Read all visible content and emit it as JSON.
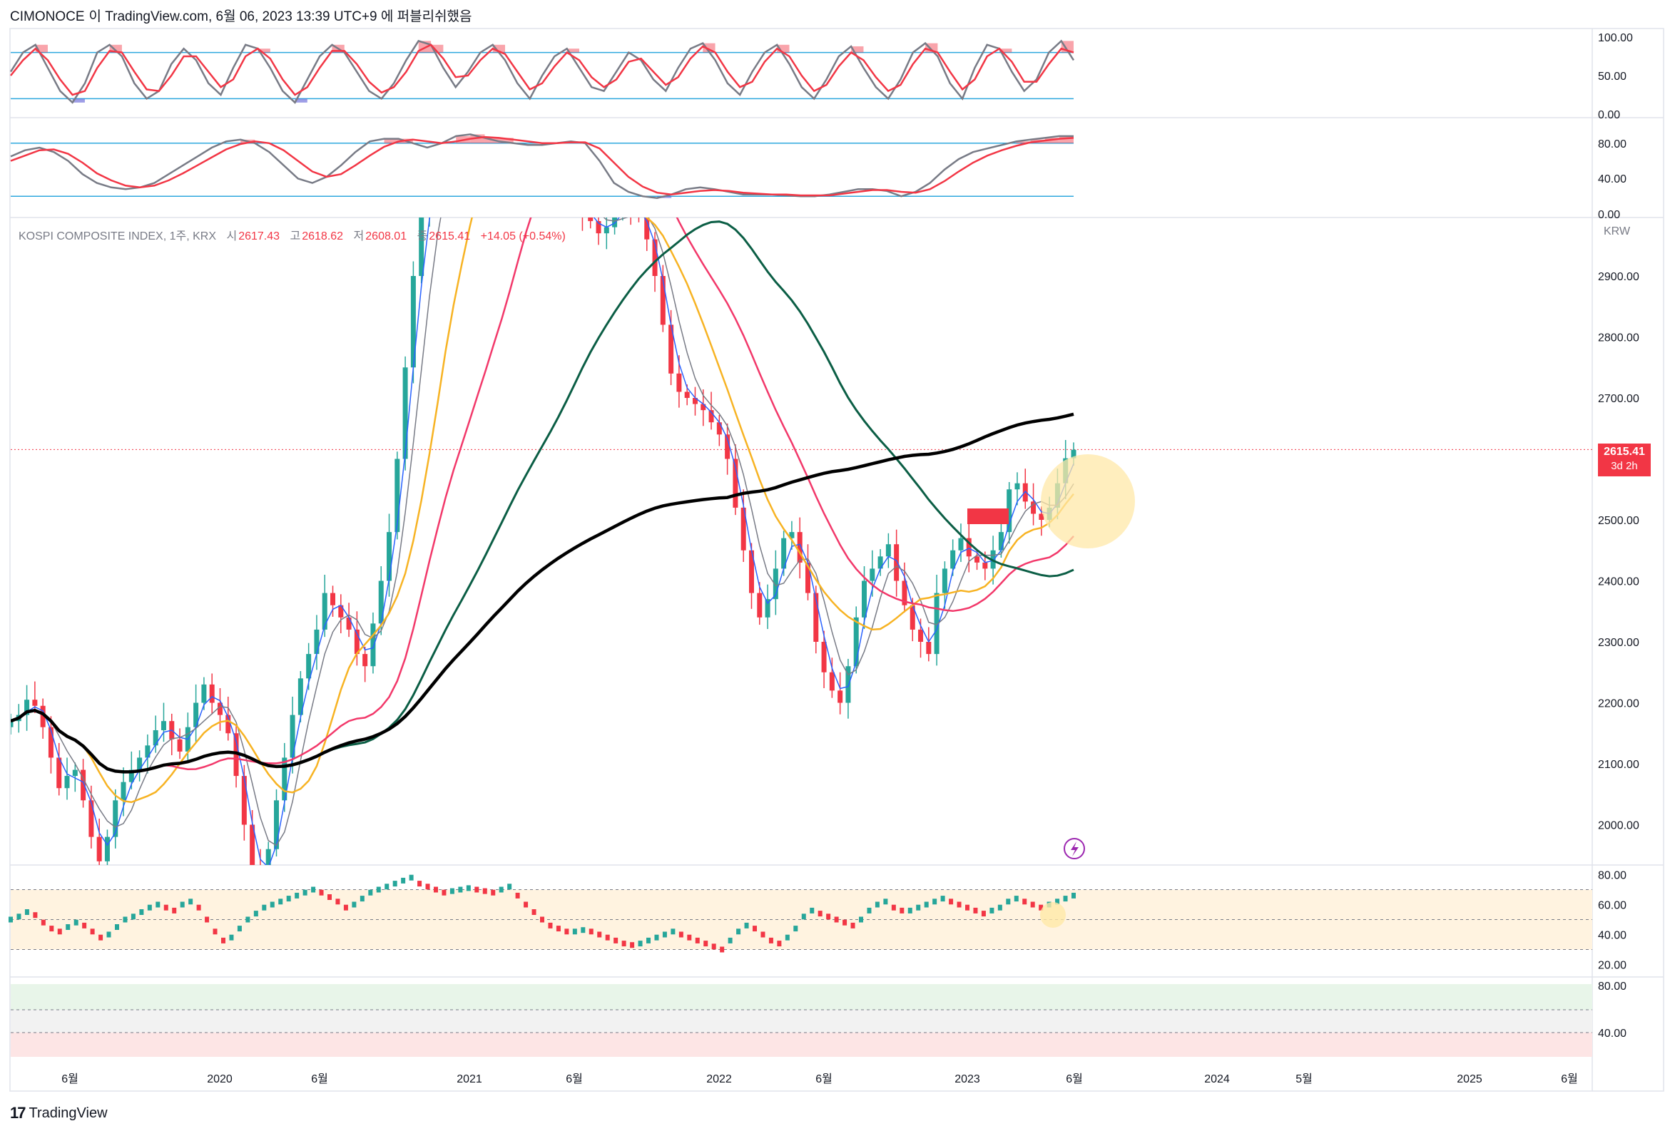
{
  "header": {
    "author": "CIMONOCE",
    "text": "이 TradingView.com, 6월 06, 2023 13:39 UTC+9 에 퍼블리쉬했음"
  },
  "ohlc": {
    "symbol": "KOSPI COMPOSITE INDEX, 1주, KRX",
    "open_label": "시",
    "open": "2617.43",
    "high_label": "고",
    "high": "2618.62",
    "low_label": "저",
    "low": "2608.01",
    "close_label": "종",
    "close": "2615.41",
    "change": "+14.05 (+0.54%)"
  },
  "price_tag": {
    "price": "2615.41",
    "countdown": "3d 2h"
  },
  "currency": "KRW",
  "footer": {
    "logo": "17",
    "brand": "TradingView"
  },
  "colors": {
    "up": "#26a69a",
    "down": "#f23645",
    "ma_fast": "#2962ff",
    "ma_gray": "#787b86",
    "ma_yellow": "#f7b323",
    "ma_pink": "#f2386a",
    "ma_green": "#0b5e45",
    "ma_black": "#000000",
    "stoch_k": "#787b86",
    "stoch_d": "#f23645",
    "band": "#2ea8de",
    "highlight": "#ffe8a8"
  },
  "chart_data": [
    {
      "type": "line",
      "panel": "stochastic-1",
      "y_ticks": [
        "100.00",
        "50.00",
        "0.00"
      ],
      "levels": [
        80,
        20
      ],
      "ylim": [
        0,
        100
      ],
      "series": [
        {
          "values": [
            55,
            80,
            90,
            60,
            30,
            15,
            40,
            80,
            90,
            75,
            40,
            20,
            30,
            65,
            85,
            70,
            40,
            25,
            60,
            90,
            85,
            60,
            30,
            15,
            45,
            75,
            90,
            80,
            55,
            30,
            20,
            40,
            70,
            95,
            90,
            60,
            35,
            55,
            80,
            90,
            70,
            40,
            20,
            50,
            75,
            85,
            60,
            35,
            30,
            55,
            80,
            70,
            45,
            30,
            60,
            85,
            92,
            70,
            40,
            25,
            55,
            80,
            90,
            65,
            35,
            20,
            45,
            75,
            88,
            60,
            35,
            20,
            45,
            80,
            92,
            75,
            40,
            20,
            60,
            90,
            85,
            55,
            30,
            45,
            80,
            95,
            70
          ]
        },
        {
          "values": [
            50,
            70,
            85,
            70,
            45,
            25,
            30,
            60,
            82,
            80,
            55,
            32,
            30,
            50,
            75,
            75,
            55,
            35,
            45,
            75,
            85,
            72,
            45,
            25,
            35,
            60,
            82,
            82,
            65,
            42,
            28,
            35,
            55,
            82,
            90,
            72,
            48,
            50,
            70,
            85,
            78,
            55,
            32,
            40,
            62,
            80,
            70,
            48,
            35,
            45,
            68,
            72,
            55,
            38,
            48,
            72,
            88,
            80,
            55,
            35,
            42,
            68,
            85,
            75,
            50,
            30,
            38,
            62,
            80,
            70,
            48,
            30,
            38,
            65,
            85,
            80,
            55,
            32,
            45,
            75,
            85,
            68,
            42,
            42,
            65,
            85,
            80
          ]
        }
      ]
    },
    {
      "type": "line",
      "panel": "stochastic-2",
      "y_ticks": [
        "80.00",
        "40.00",
        "0.00"
      ],
      "levels": [
        80,
        20
      ],
      "ylim": [
        0,
        100
      ],
      "series": [
        {
          "values": [
            65,
            72,
            75,
            70,
            60,
            45,
            35,
            30,
            28,
            30,
            35,
            45,
            55,
            65,
            75,
            82,
            84,
            80,
            70,
            55,
            40,
            35,
            42,
            55,
            70,
            82,
            85,
            85,
            80,
            75,
            80,
            88,
            90,
            86,
            82,
            80,
            78,
            78,
            80,
            82,
            80,
            60,
            35,
            25,
            20,
            18,
            22,
            28,
            30,
            28,
            25,
            22,
            22,
            22,
            21,
            20,
            20,
            22,
            25,
            28,
            28,
            26,
            20,
            25,
            35,
            50,
            62,
            70,
            74,
            78,
            82,
            84,
            86,
            88,
            88
          ]
        },
        {
          "values": [
            60,
            66,
            72,
            73,
            68,
            58,
            46,
            38,
            32,
            30,
            32,
            38,
            46,
            55,
            64,
            73,
            79,
            82,
            80,
            72,
            60,
            48,
            42,
            45,
            55,
            66,
            76,
            82,
            84,
            82,
            80,
            82,
            85,
            87,
            86,
            84,
            82,
            80,
            80,
            81,
            81,
            74,
            58,
            42,
            31,
            24,
            22,
            24,
            26,
            27,
            26,
            24,
            23,
            22,
            22,
            21,
            21,
            21,
            23,
            25,
            27,
            27,
            25,
            24,
            28,
            37,
            48,
            58,
            66,
            72,
            77,
            81,
            83,
            85,
            86
          ]
        }
      ]
    },
    {
      "type": "candlestick",
      "panel": "price",
      "title": "KOSPI COMPOSITE INDEX, 1주, KRX",
      "ylabel": "KRW",
      "y_ticks": [
        2900,
        2800,
        2700,
        2600,
        2500,
        2400,
        2300,
        2200,
        2100,
        2000
      ],
      "ylim": [
        1930,
        3050
      ],
      "x_ticks": [
        "6월",
        "2020",
        "6월",
        "2021",
        "6월",
        "2022",
        "6월",
        "2023",
        "6월",
        "2024",
        "5월",
        "2025",
        "6월"
      ],
      "last_price": 2615.41,
      "closes": [
        2170,
        2180,
        2205,
        2195,
        2160,
        2110,
        2060,
        2080,
        2090,
        2040,
        1980,
        1940,
        1980,
        2040,
        2070,
        2090,
        2110,
        2130,
        2155,
        2170,
        2140,
        2120,
        2160,
        2200,
        2230,
        2200,
        2180,
        2150,
        2080,
        2000,
        1930,
        1900,
        1960,
        2040,
        2110,
        2180,
        2240,
        2280,
        2320,
        2380,
        2360,
        2340,
        2320,
        2280,
        2260,
        2330,
        2400,
        2480,
        2600,
        2750,
        2900,
        3000,
        3080,
        3100,
        3120,
        3090,
        3060,
        3100,
        3150,
        3200,
        3210,
        3180,
        3230,
        3250,
        3200,
        3150,
        3120,
        3080,
        3060,
        3040,
        3020,
        3000,
        2990,
        2970,
        2980,
        3010,
        3020,
        3010,
        3000,
        2960,
        2900,
        2820,
        2740,
        2710,
        2700,
        2690,
        2680,
        2660,
        2640,
        2600,
        2520,
        2450,
        2380,
        2340,
        2370,
        2420,
        2470,
        2480,
        2430,
        2380,
        2300,
        2250,
        2220,
        2200,
        2260,
        2340,
        2400,
        2420,
        2440,
        2460,
        2400,
        2360,
        2320,
        2300,
        2280,
        2380,
        2420,
        2450,
        2470,
        2440,
        2430,
        2420,
        2450,
        2480,
        2550,
        2560,
        2530,
        2510,
        2500,
        2520,
        2560,
        2601,
        2615
      ]
    },
    {
      "type": "line",
      "panel": "rsi",
      "y_ticks": [
        "80.00",
        "60.00",
        "40.00",
        "20.00"
      ],
      "ylim": [
        15,
        85
      ],
      "levels": [
        70,
        50,
        30
      ],
      "values": [
        50,
        52,
        55,
        53,
        48,
        44,
        42,
        45,
        48,
        46,
        42,
        38,
        40,
        45,
        50,
        52,
        55,
        58,
        60,
        58,
        56,
        60,
        62,
        58,
        50,
        42,
        36,
        38,
        44,
        50,
        54,
        58,
        60,
        62,
        64,
        66,
        68,
        70,
        68,
        65,
        62,
        58,
        60,
        64,
        68,
        70,
        72,
        74,
        76,
        78,
        74,
        72,
        70,
        68,
        69,
        70,
        71,
        70,
        69,
        68,
        70,
        72,
        66,
        60,
        55,
        50,
        46,
        44,
        42,
        42,
        43,
        42,
        40,
        38,
        36,
        34,
        33,
        34,
        36,
        38,
        40,
        42,
        40,
        38,
        36,
        34,
        32,
        30,
        36,
        42,
        46,
        44,
        40,
        36,
        34,
        38,
        44,
        52,
        56,
        54,
        52,
        50,
        48,
        46,
        50,
        56,
        60,
        62,
        58,
        56,
        56,
        58,
        60,
        62,
        64,
        62,
        60,
        58,
        56,
        54,
        56,
        58,
        62,
        64,
        62,
        60,
        58,
        60,
        62,
        64,
        66
      ]
    },
    {
      "type": "area",
      "panel": "lower-oscillator",
      "y_ticks": [
        "80.00",
        "40.00"
      ],
      "levels": [
        80,
        40
      ]
    }
  ]
}
